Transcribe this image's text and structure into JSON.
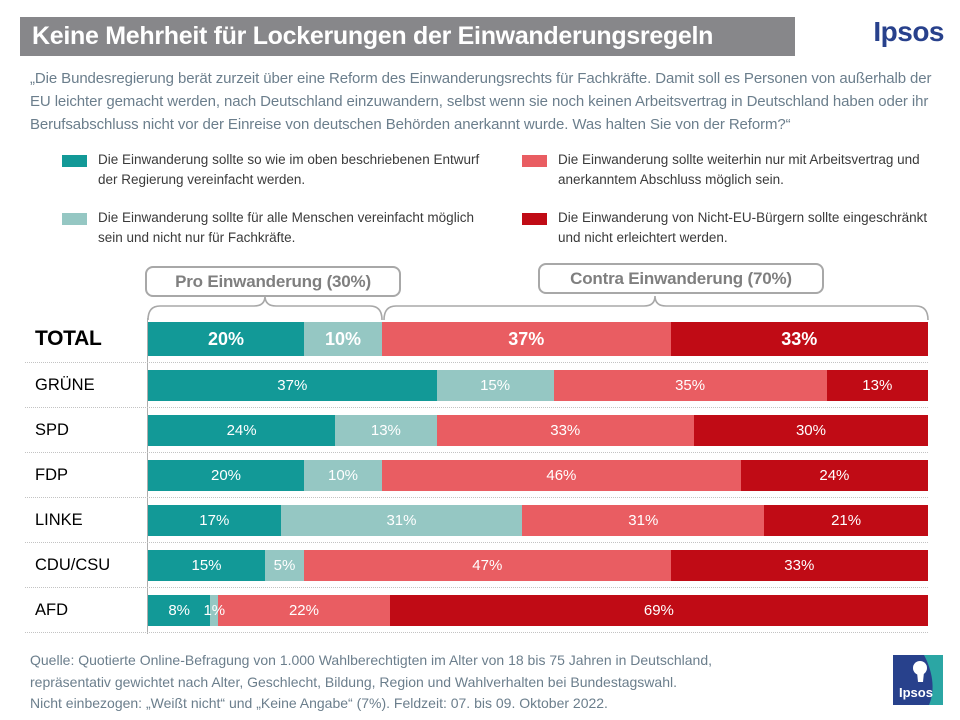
{
  "title": "Keine Mehrheit für Lockerungen der Einwanderungsregeln",
  "brand": {
    "wordmark": "Ipsos",
    "logo_text": "Ipsos",
    "blue": "#28418c",
    "teal": "#2ba6a4"
  },
  "question": "„Die Bundesregierung berät zurzeit über eine Reform des Einwanderungsrechts für Fachkräfte. Damit soll es Personen von außerhalb der EU leichter gemacht werden, nach Deutschland einzuwandern, selbst wenn sie noch keinen Arbeitsvertrag in Deutschland haben oder ihr Berufsabschluss nicht vor der Einreise von deutschen Behörden anerkannt wurde. Was halten Sie von der Reform?“",
  "legend": [
    {
      "label": "Die Einwanderung sollte so wie im oben beschriebenen Entwurf der Regierung vereinfacht werden.",
      "color": "#129997"
    },
    {
      "label": "Die Einwanderung sollte für alle Menschen vereinfacht möglich sein und nicht nur für Fachkräfte.",
      "color": "#95c7c3"
    },
    {
      "label": "Die Einwanderung sollte weiterhin nur mit Arbeitsvertrag und anerkanntem Abschluss möglich sein.",
      "color": "#e95d62"
    },
    {
      "label": "Die Einwanderung von Nicht-EU-Bürgern sollte eingeschränkt und nicht erleichtert werden.",
      "color": "#c00b15"
    }
  ],
  "group_labels": {
    "pro": "Pro Einwanderung (30%)",
    "contra": "Contra Einwanderung (70%)"
  },
  "chart_data": {
    "type": "bar",
    "stacked": true,
    "orientation": "horizontal",
    "unit": "%",
    "xlim": [
      0,
      100
    ],
    "categories": [
      "TOTAL",
      "GRÜNE",
      "SPD",
      "FDP",
      "LINKE",
      "CDU/CSU",
      "AFD"
    ],
    "series": [
      {
        "name": "Die Einwanderung sollte so wie im oben beschriebenen Entwurf der Regierung vereinfacht werden.",
        "color": "#129997",
        "values": [
          20,
          37,
          24,
          20,
          17,
          15,
          8
        ]
      },
      {
        "name": "Die Einwanderung sollte für alle Menschen vereinfacht möglich sein und nicht nur für Fachkräfte.",
        "color": "#95c7c3",
        "values": [
          10,
          15,
          13,
          10,
          31,
          5,
          1
        ]
      },
      {
        "name": "Die Einwanderung sollte weiterhin nur mit Arbeitsvertrag und anerkanntem Abschluss möglich sein.",
        "color": "#e95d62",
        "values": [
          37,
          35,
          33,
          46,
          31,
          47,
          22
        ]
      },
      {
        "name": "Die Einwanderung von Nicht-EU-Bürgern sollte eingeschränkt und nicht erleichtert werden.",
        "color": "#c00b15",
        "values": [
          33,
          13,
          30,
          24,
          21,
          33,
          69
        ]
      }
    ],
    "group_summary": {
      "pro_total": 30,
      "contra_total": 70
    },
    "legend_position": "top",
    "grid": "dotted-row-separators"
  },
  "source_lines": [
    "Quelle: Quotierte Online-Befragung von 1.000 Wahlberechtigten im Alter von 18 bis 75 Jahren in Deutschland,",
    "repräsentativ gewichtet nach Alter, Geschlecht, Bildung, Region und Wahlverhalten bei Bundestagswahl.",
    "Nicht einbezogen: „Weißt nicht“ und „Keine Angabe“ (7%). Feldzeit: 07. bis 09. Oktober 2022."
  ]
}
